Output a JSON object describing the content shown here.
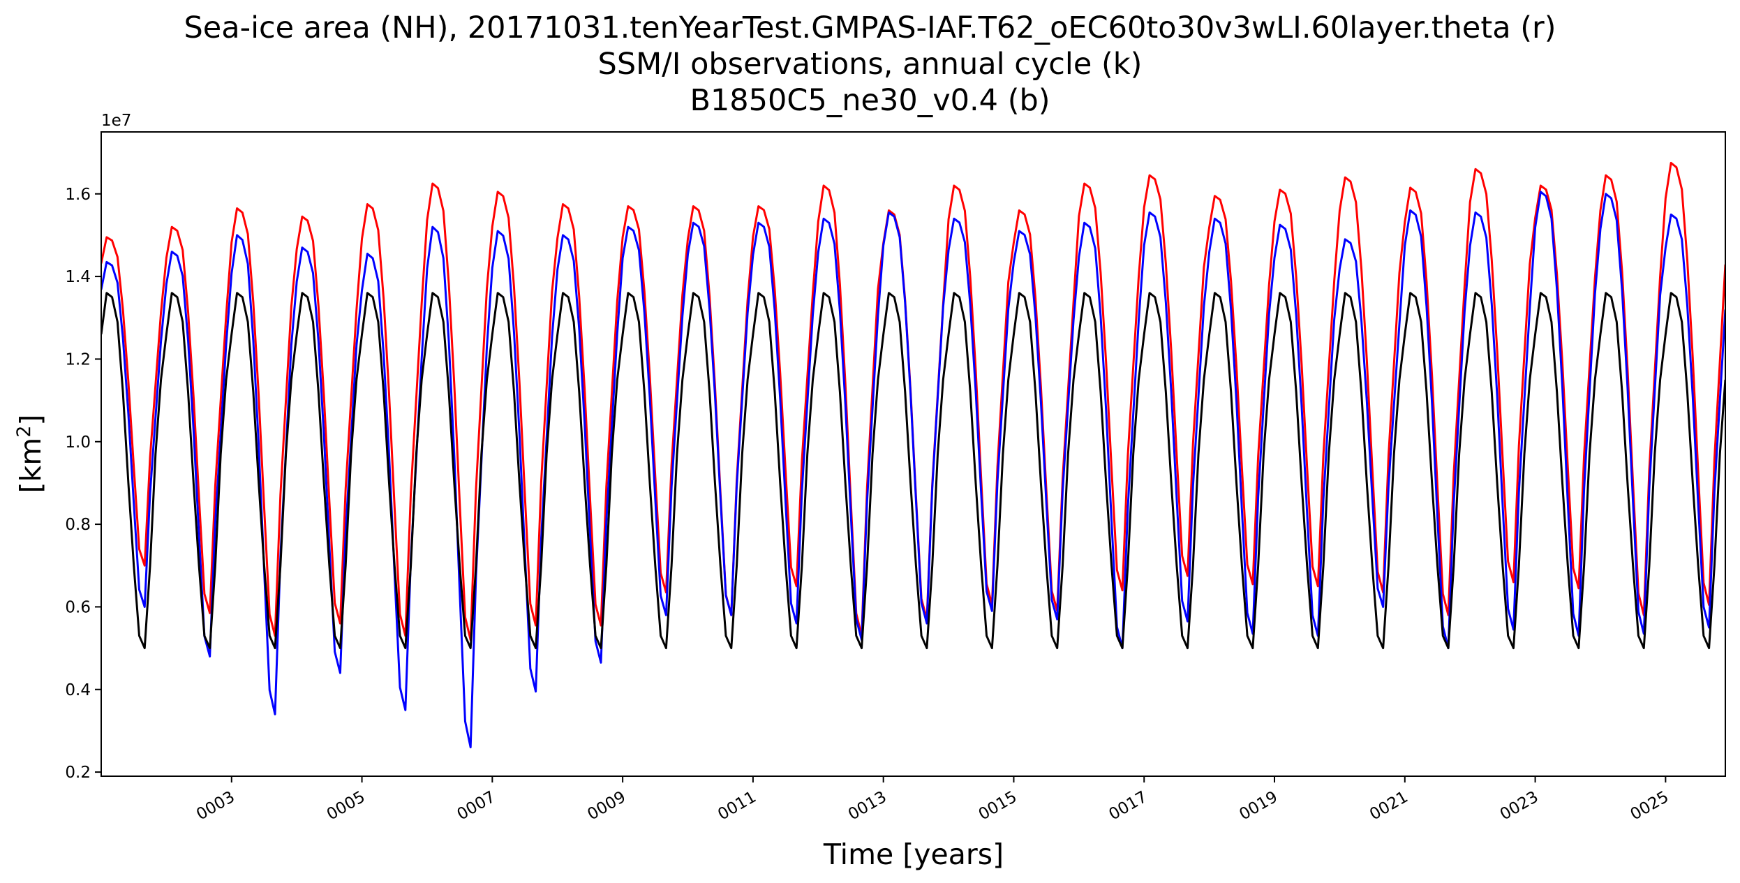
{
  "chart_data": {
    "type": "line",
    "title_lines": [
      "Sea-ice area (NH), 20171031.tenYearTest.GMPAS-IAF.T62_oEC60to30v3wLI.60layer.theta (r)",
      "SSM/I observations, annual cycle (k)",
      "B1850C5_ne30_v0.4 (b)"
    ],
    "xlabel": "Time [years]",
    "ylabel_main": "[km",
    "ylabel_sup": "2",
    "ylabel_end": "]",
    "y_offset_label": "1e7",
    "xlim": [
      1.0,
      25.917
    ],
    "ylim": [
      1900000,
      17500000
    ],
    "x_ticks": [
      {
        "value": 3,
        "label": "0003"
      },
      {
        "value": 5,
        "label": "0005"
      },
      {
        "value": 7,
        "label": "0007"
      },
      {
        "value": 9,
        "label": "0009"
      },
      {
        "value": 11,
        "label": "0011"
      },
      {
        "value": 13,
        "label": "0013"
      },
      {
        "value": 15,
        "label": "0015"
      },
      {
        "value": 17,
        "label": "0017"
      },
      {
        "value": 19,
        "label": "0019"
      },
      {
        "value": 21,
        "label": "0021"
      },
      {
        "value": 23,
        "label": "0023"
      },
      {
        "value": 25,
        "label": "0025"
      }
    ],
    "y_ticks": [
      {
        "value": 2000000,
        "label": "0.2"
      },
      {
        "value": 4000000,
        "label": "0.4"
      },
      {
        "value": 6000000,
        "label": "0.6"
      },
      {
        "value": 8000000,
        "label": "0.8"
      },
      {
        "value": 10000000,
        "label": "1.0"
      },
      {
        "value": 12000000,
        "label": "1.2"
      },
      {
        "value": 14000000,
        "label": "1.4"
      },
      {
        "value": 16000000,
        "label": "1.6"
      }
    ],
    "grid": false,
    "x_start": 1.0,
    "x_step_months": 1,
    "series": [
      {
        "name": "(r)",
        "color": "#ff0000",
        "annual_peaks": [
          14950000,
          15200000,
          15650000,
          15450000,
          15750000,
          16250000,
          16050000,
          15750000,
          15700000,
          15700000,
          15700000,
          16200000,
          15600000,
          16200000,
          15600000,
          16250000,
          16450000,
          15950000,
          16100000,
          16400000,
          16150000,
          16600000,
          16200000,
          16450000,
          16750000
        ],
        "annual_minima": [
          7000000,
          5850000,
          5300000,
          5600000,
          5300000,
          5200000,
          5550000,
          5550000,
          6350000,
          5800000,
          6500000,
          5300000,
          5700000,
          6050000,
          5900000,
          6400000,
          6750000,
          6550000,
          6500000,
          6350000,
          5800000,
          6600000,
          6450000,
          5800000,
          6050000
        ]
      },
      {
        "name": "(b)",
        "color": "#0000ff",
        "annual_peaks": [
          14350000,
          14600000,
          15000000,
          14700000,
          14550000,
          15200000,
          15100000,
          15000000,
          15200000,
          15300000,
          15300000,
          15400000,
          15550000,
          15400000,
          15100000,
          15300000,
          15550000,
          15400000,
          15250000,
          14900000,
          15600000,
          15550000,
          16050000,
          16000000,
          15500000
        ],
        "annual_minima": [
          6000000,
          4800000,
          3400000,
          4400000,
          3500000,
          2600000,
          3950000,
          4650000,
          5800000,
          5800000,
          5600000,
          5200000,
          5600000,
          5900000,
          5700000,
          5000000,
          5650000,
          5350000,
          5300000,
          6000000,
          5000000,
          5450000,
          5300000,
          5350000,
          5500000
        ]
      },
      {
        "name": "(k)",
        "color": "#000000",
        "annual_cycle": [
          12600000,
          13600000,
          13500000,
          12900000,
          11200000,
          9000000,
          7000000,
          5300000,
          5000000,
          7000000,
          9700000,
          11500000
        ]
      }
    ]
  }
}
